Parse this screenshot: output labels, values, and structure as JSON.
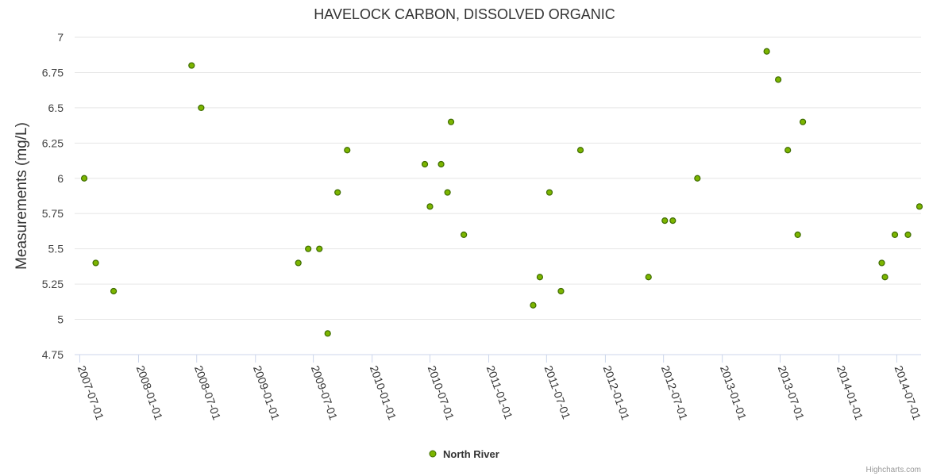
{
  "chart_data": {
    "type": "scatter",
    "title": "HAVELOCK CARBON, DISSOLVED ORGANIC",
    "xlabel": "",
    "ylabel": "Measurements (mg/L)",
    "ylim": [
      4.75,
      7
    ],
    "y_ticks": [
      "4.75",
      "5",
      "5.25",
      "5.5",
      "5.75",
      "6",
      "6.25",
      "6.5",
      "6.75",
      "7"
    ],
    "x_ticks": [
      "2007-07-01",
      "2008-01-01",
      "2008-07-01",
      "2009-01-01",
      "2009-07-01",
      "2010-01-01",
      "2010-07-01",
      "2011-01-01",
      "2011-07-01",
      "2012-01-01",
      "2012-07-01",
      "2013-01-01",
      "2013-07-01",
      "2014-01-01",
      "2014-07-01"
    ],
    "xlim": [
      "2007-06-15",
      "2014-09-15"
    ],
    "grid": true,
    "legend_position": "bottom-center",
    "colors": {
      "marker_fill": "#7cb500",
      "marker_stroke": "#3d6b00",
      "grid": "#e6e6e6",
      "axis": "#ccd6eb"
    },
    "series": [
      {
        "name": "North River",
        "points": [
          [
            "2007-07-15",
            6.0
          ],
          [
            "2007-08-20",
            5.4
          ],
          [
            "2007-10-15",
            5.2
          ],
          [
            "2008-06-15",
            6.8
          ],
          [
            "2008-07-15",
            6.5
          ],
          [
            "2009-05-15",
            5.4
          ],
          [
            "2009-06-15",
            5.5
          ],
          [
            "2009-07-20",
            5.5
          ],
          [
            "2009-08-15",
            4.9
          ],
          [
            "2009-09-15",
            5.9
          ],
          [
            "2009-10-15",
            6.2
          ],
          [
            "2010-06-15",
            6.1
          ],
          [
            "2010-07-01",
            5.8
          ],
          [
            "2010-08-05",
            6.1
          ],
          [
            "2010-08-25",
            5.9
          ],
          [
            "2010-09-05",
            6.4
          ],
          [
            "2010-10-15",
            5.6
          ],
          [
            "2011-05-20",
            5.1
          ],
          [
            "2011-06-10",
            5.3
          ],
          [
            "2011-07-10",
            5.9
          ],
          [
            "2011-08-15",
            5.2
          ],
          [
            "2011-10-15",
            6.2
          ],
          [
            "2012-05-15",
            5.3
          ],
          [
            "2012-07-05",
            5.7
          ],
          [
            "2012-07-30",
            5.7
          ],
          [
            "2012-10-15",
            6.0
          ],
          [
            "2013-05-20",
            6.9
          ],
          [
            "2013-06-25",
            6.7
          ],
          [
            "2013-07-25",
            6.2
          ],
          [
            "2013-08-25",
            5.6
          ],
          [
            "2013-09-10",
            6.4
          ],
          [
            "2014-05-15",
            5.4
          ],
          [
            "2014-05-25",
            5.3
          ],
          [
            "2014-06-25",
            5.6
          ],
          [
            "2014-08-05",
            5.6
          ],
          [
            "2014-09-10",
            5.8
          ]
        ]
      }
    ]
  },
  "credits": "Highcharts.com"
}
